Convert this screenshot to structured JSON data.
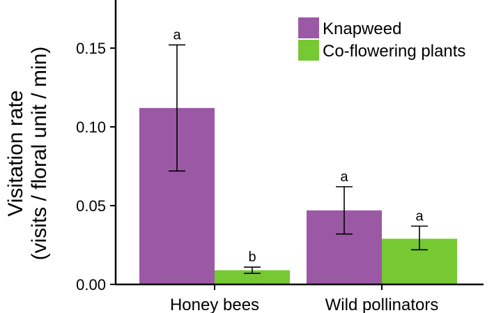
{
  "chart_data": {
    "type": "bar",
    "title": "",
    "xlabel": "",
    "ylabel": [
      "Visitation rate",
      "(visits / floral unit / min)"
    ],
    "ylim": [
      0,
      0.18
    ],
    "yticks": [
      {
        "value": 0.0,
        "label": "0.00"
      },
      {
        "value": 0.05,
        "label": "0.05"
      },
      {
        "value": 0.1,
        "label": "0.10"
      },
      {
        "value": 0.15,
        "label": "0.15"
      }
    ],
    "categories": [
      "Honey bees",
      "Wild pollinators"
    ],
    "series": [
      {
        "name": "Knapweed",
        "color": "#9b59a5",
        "values": [
          0.112,
          0.047
        ],
        "error_low": [
          0.072,
          0.032
        ],
        "error_high": [
          0.152,
          0.062
        ],
        "significance": [
          "a",
          "a"
        ]
      },
      {
        "name": "Co-flowering plants",
        "color": "#76c932",
        "values": [
          0.009,
          0.029
        ],
        "error_low": [
          0.007,
          0.022
        ],
        "error_high": [
          0.011,
          0.037
        ],
        "significance": [
          "b",
          "a"
        ]
      }
    ],
    "legend": {
      "position": "top-right"
    },
    "grid": false
  }
}
